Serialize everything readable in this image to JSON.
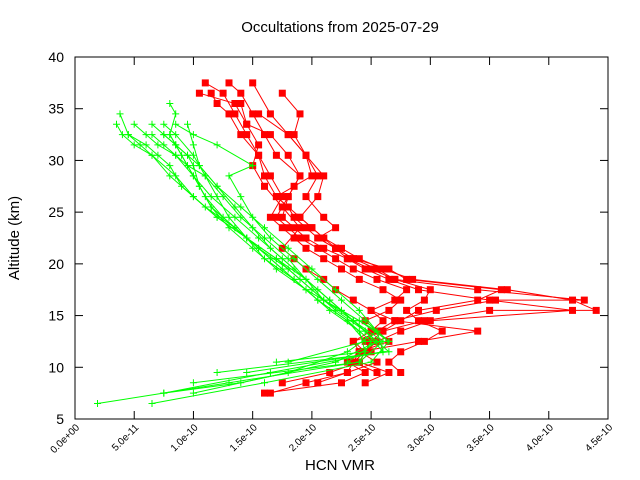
{
  "chart_data": {
    "type": "scatter",
    "title": "Occultations from 2025-07-29",
    "xlabel": "HCN VMR",
    "ylabel": "Altitude (km)",
    "xlim": [
      0,
      4.5e-10
    ],
    "ylim": [
      5,
      40
    ],
    "x_ticks": [
      0,
      5e-11,
      1e-10,
      1.5e-10,
      2e-10,
      2.5e-10,
      3e-10,
      3.5e-10,
      4e-10,
      4.5e-10
    ],
    "x_tick_labels": [
      "0.0e+00",
      "5.0e-11",
      "1.0e-10",
      "1.5e-10",
      "2.0e-10",
      "2.5e-10",
      "3.0e-10",
      "3.5e-10",
      "4.0e-10",
      "4.5e-10"
    ],
    "y_ticks": [
      5,
      10,
      15,
      20,
      25,
      30,
      35,
      40
    ],
    "y_tick_labels": [
      "5",
      "10",
      "15",
      "20",
      "25",
      "30",
      "35",
      "40"
    ],
    "grid": false,
    "legend": "none",
    "series": [
      {
        "color": "#ff0000",
        "marker": "square",
        "profiles": [
          {
            "x": [
              1.65e-10,
              1.95e-10,
              2.3e-10,
              2.35e-10,
              2.45e-10,
              2.5e-10,
              2.6e-10,
              2.75e-10,
              2.9e-10,
              3.4e-10,
              3.6e-10,
              2.8e-10,
              2.65e-10,
              2.35e-10,
              2.2e-10,
              2.05e-10,
              1.95e-10,
              1.85e-10,
              1.8e-10,
              1.7e-10,
              1.85e-10,
              2e-10,
              1.95e-10,
              1.8e-10,
              1.55e-10
            ],
            "y": [
              7.5,
              8.5,
              9.5,
              10.5,
              11.5,
              12.5,
              13.5,
              14.5,
              15.5,
              16.5,
              17.5,
              18.5,
              19.5,
              20.5,
              21.5,
              22.5,
              23.5,
              24.5,
              25.5,
              26.5,
              27.5,
              28.5,
              30.5,
              32.5,
              34.5
            ]
          },
          {
            "x": [
              1.75e-10,
              2.15e-10,
              2.4e-10,
              2.5e-10,
              2.45e-10,
              2.55e-10,
              2.7e-10,
              3.05e-10,
              3.55e-10,
              4.3e-10,
              3.4e-10,
              2.7e-10,
              2.5e-10,
              2.3e-10,
              2.1e-10,
              1.95e-10,
              1.85e-10,
              1.75e-10,
              1.8e-10,
              1.9e-10,
              1.7e-10,
              1.6e-10,
              1.5e-10,
              1.4e-10,
              1.3e-10
            ],
            "y": [
              8.5,
              9.5,
              10.5,
              11.5,
              12.5,
              13.5,
              14.5,
              15.5,
              16.5,
              16.5,
              17.5,
              18.5,
              19.5,
              20.5,
              21.5,
              22.5,
              23.5,
              24.5,
              26.5,
              28.5,
              30.5,
              32.5,
              34.5,
              36.5,
              37.5
            ]
          },
          {
            "x": [
              2.05e-10,
              2.3e-10,
              2.55e-10,
              2.4e-10,
              2.35e-10,
              2.6e-10,
              2.95e-10,
              3.5e-10,
              4.4e-10,
              4.2e-10,
              3.65e-10,
              2.85e-10,
              2.6e-10,
              2.4e-10,
              2.25e-10,
              2.1e-10,
              2e-10,
              1.9e-10,
              2.05e-10,
              2.1e-10,
              1.95e-10,
              1.85e-10,
              1.9e-10,
              1.75e-10
            ],
            "y": [
              8.5,
              9.5,
              10.5,
              11.5,
              12.5,
              13.5,
              14.5,
              15.5,
              15.5,
              16.5,
              17.5,
              18.5,
              19.5,
              20.5,
              21.5,
              22.5,
              23.5,
              24.5,
              26.5,
              28.5,
              30.5,
              32.5,
              34.5,
              36.5
            ]
          },
          {
            "x": [
              2.45e-10,
              2.65e-10,
              2.4e-10,
              2.45e-10,
              2.55e-10,
              2.75e-10,
              3e-10,
              4.2e-10,
              3.5e-10,
              2.9e-10,
              2.65e-10,
              2.45e-10,
              2.3e-10,
              2.2e-10,
              2.05e-10,
              2.2e-10,
              2.1e-10,
              1.95e-10,
              2.05e-10,
              1.95e-10,
              1.8e-10,
              1.65e-10,
              1.5e-10
            ],
            "y": [
              8.5,
              9.5,
              10.5,
              11.5,
              12.5,
              13.5,
              14.5,
              15.5,
              16.5,
              17.5,
              18.5,
              19.5,
              20.5,
              21.5,
              22.5,
              23.5,
              24.5,
              26.5,
              28.5,
              30.5,
              32.5,
              34.5,
              37.5
            ]
          },
          {
            "x": [
              2.75e-10,
              2.65e-10,
              2.75e-10,
              2.95e-10,
              3.1e-10,
              2.9e-10,
              2.8e-10,
              2.95e-10,
              3e-10,
              2.7e-10,
              2.55e-10,
              2.35e-10,
              2.2e-10,
              2.1e-10,
              2e-10,
              1.9e-10,
              1.8e-10,
              1.7e-10,
              1.6e-10,
              1.55e-10,
              1.45e-10,
              1.35e-10,
              1.25e-10,
              1.1e-10
            ],
            "y": [
              9.5,
              10.5,
              11.5,
              12.5,
              13.5,
              14.5,
              15.5,
              16.5,
              17.5,
              18.5,
              19.5,
              20.5,
              21.5,
              22.5,
              23.5,
              24.5,
              25.5,
              26.5,
              28.5,
              30.5,
              32.5,
              34.5,
              36.5,
              37.5
            ]
          },
          {
            "x": [
              2.55e-10,
              2.35e-10,
              2.4e-10,
              2.65e-10,
              2.55e-10,
              2.45e-10,
              2.65e-10,
              2.75e-10,
              2.6e-10,
              2.4e-10,
              2.25e-10,
              2.1e-10,
              1.95e-10,
              1.85e-10,
              1.75e-10,
              1.65e-10,
              1.75e-10,
              1.65e-10,
              1.55e-10,
              1.4e-10,
              1.3e-10,
              1.2e-10,
              1.15e-10
            ],
            "y": [
              9.5,
              10.5,
              11.5,
              12.5,
              13.5,
              14.5,
              15.5,
              16.5,
              17.5,
              18.5,
              19.5,
              20.5,
              21.5,
              22.5,
              23.5,
              24.5,
              26.5,
              28.5,
              30.5,
              32.5,
              34.5,
              35.5,
              36.5
            ]
          },
          {
            "x": [
              2.4e-10,
              2.45e-10,
              2.35e-10,
              2.5e-10,
              2.6e-10,
              2.5e-10,
              2.7e-10,
              2.8e-10,
              2.55e-10,
              2.35e-10,
              2.2e-10,
              2.05e-10,
              1.9e-10,
              1.8e-10,
              1.7e-10,
              1.8e-10,
              1.9e-10,
              1.8e-10,
              1.65e-10,
              1.45e-10,
              1.35e-10,
              1.05e-10
            ],
            "y": [
              10.5,
              11.5,
              12.5,
              13.5,
              14.5,
              15.5,
              16.5,
              17.5,
              18.5,
              19.5,
              20.5,
              21.5,
              22.5,
              23.5,
              24.5,
              26.5,
              28.5,
              30.5,
              32.5,
              33.5,
              35.5,
              36.5
            ]
          },
          {
            "x": [
              1.6e-10,
              2.25e-10,
              2.45e-10,
              2.3e-10,
              2.4e-10,
              2.9e-10,
              3.4e-10,
              2.7e-10,
              2.5e-10,
              2.35e-10,
              2.2e-10,
              2.1e-10,
              1.95e-10,
              1.85e-10,
              1.75e-10,
              1.9e-10,
              1.75e-10,
              1.6e-10,
              1.5e-10,
              1.55e-10,
              1.45e-10,
              1.4e-10
            ],
            "y": [
              7.5,
              8.5,
              9.5,
              10.5,
              11.5,
              12.5,
              13.5,
              14.5,
              15.5,
              16.5,
              17.5,
              18.5,
              19.5,
              20.5,
              21.5,
              23.5,
              25.5,
              27.5,
              29.5,
              31.5,
              33.5,
              35.5
            ]
          }
        ]
      },
      {
        "color": "#00ff00",
        "marker": "plus",
        "profiles": [
          {
            "x": [
              1.9e-11,
              1.3e-10,
              2.4e-10,
              2.5e-10,
              2.3e-10,
              2.05e-10,
              1.85e-10,
              1.6e-10,
              1.45e-10,
              1.2e-10,
              1e-10,
              8.5e-11,
              6.5e-11,
              5e-11,
              4e-11,
              3.5e-11
            ],
            "y": [
              6.5,
              8.5,
              10.5,
              12.5,
              14.5,
              16.5,
              18.5,
              20.5,
              22.5,
              24.5,
              26.5,
              28.5,
              30.5,
              31.5,
              32.5,
              33.5
            ]
          },
          {
            "x": [
              6.5e-11,
              1.6e-10,
              2.5e-10,
              2.65e-10,
              2.4e-10,
              2.1e-10,
              1.9e-10,
              1.7e-10,
              1.45e-10,
              1.2e-10,
              1e-10,
              8e-11,
              6.5e-11,
              5.5e-11,
              4.5e-11,
              3.8e-11
            ],
            "y": [
              6.5,
              8.5,
              10.5,
              12.5,
              14.5,
              16.5,
              18.5,
              20.5,
              22.5,
              24.5,
              26.5,
              28.5,
              30.5,
              31.5,
              32.5,
              34.5
            ]
          },
          {
            "x": [
              7.5e-11,
              1.4e-10,
              2.2e-10,
              2.55e-10,
              2.35e-10,
              2.15e-10,
              1.95e-10,
              1.75e-10,
              1.55e-10,
              1.35e-10,
              1.15e-10,
              1e-10,
              8.5e-11,
              7e-11,
              6e-11,
              5e-11
            ],
            "y": [
              7.5,
              8.5,
              10.5,
              12.5,
              14.5,
              16.5,
              18.5,
              20.5,
              22.5,
              24.5,
              26.5,
              28.5,
              30.5,
              31.5,
              32.5,
              33.5
            ]
          },
          {
            "x": [
              1e-10,
              1.8e-10,
              2.3e-10,
              2.55e-10,
              2.4e-10,
              2.2e-10,
              2e-10,
              1.8e-10,
              1.6e-10,
              1.4e-10,
              1.2e-10,
              1.05e-10,
              9.5e-11,
              8.5e-11,
              7.5e-11,
              6.5e-11
            ],
            "y": [
              7.5,
              9.5,
              11.5,
              13.5,
              15.5,
              17.5,
              19.5,
              21.5,
              23.5,
              25.5,
              27.5,
              29.5,
              30.5,
              31.5,
              32.5,
              33.5
            ]
          },
          {
            "x": [
              7.5e-11,
              1.65e-10,
              2.6e-10,
              2.55e-10,
              2.25e-10,
              1.95e-10,
              1.75e-10,
              1.55e-10,
              1.35e-10,
              1.1e-10,
              9e-11,
              8e-11,
              7e-11,
              6e-11,
              4.5e-11
            ],
            "y": [
              7.5,
              9.5,
              11.5,
              13.5,
              15.5,
              17.5,
              19.5,
              21.5,
              23.5,
              25.5,
              27.5,
              29.5,
              30.5,
              31.5,
              32.5
            ]
          },
          {
            "x": [
              1e-10,
              2.4e-10,
              2.6e-10,
              2.35e-10,
              2.1e-10,
              1.95e-10,
              1.8e-10,
              1.6e-10,
              1.4e-10,
              1.25e-10,
              1.1e-10,
              9.5e-11,
              8.5e-11,
              7.5e-11,
              6.5e-11
            ],
            "y": [
              8.5,
              10.5,
              12.5,
              14.5,
              16.5,
              18.5,
              20.5,
              22.5,
              24.5,
              26.5,
              28.5,
              29.5,
              30.5,
              31.5,
              32.5
            ]
          },
          {
            "x": [
              1.45e-10,
              2.6e-10,
              2.45e-10,
              2.2e-10,
              2e-10,
              1.8e-10,
              1.55e-10,
              1.35e-10,
              1.15e-10,
              1.05e-10,
              9.5e-11,
              8.5e-11,
              7.5e-11
            ],
            "y": [
              9.5,
              11.5,
              13.5,
              15.5,
              17.5,
              19.5,
              21.5,
              23.5,
              25.5,
              27.5,
              29.5,
              31.5,
              32.5
            ]
          },
          {
            "x": [
              1.8e-10,
              2.45e-10,
              2.3e-10,
              2.05e-10,
              1.85e-10,
              1.65e-10,
              1.45e-10,
              1.3e-10,
              1.2e-10,
              1.1e-10,
              1e-10,
              8.5e-11,
              7.5e-11
            ],
            "y": [
              10.5,
              12.5,
              14.5,
              16.5,
              18.5,
              20.5,
              22.5,
              24.5,
              26.5,
              28.5,
              30.5,
              32.5,
              33.5
            ]
          },
          {
            "x": [
              2.3e-10,
              2.55e-10,
              2.35e-10,
              2.15e-10,
              1.95e-10,
              1.7e-10,
              1.45e-10,
              1.25e-10,
              1.1e-10,
              1e-10,
              9e-11,
              8e-11
            ],
            "y": [
              10.5,
              12.5,
              14.5,
              16.5,
              18.5,
              20.5,
              22.5,
              24.5,
              26.5,
              28.5,
              30.5,
              32.5
            ]
          },
          {
            "x": [
              2.65e-10,
              2.45e-10,
              2.25e-10,
              2.05e-10,
              1.85e-10,
              1.65e-10,
              1.5e-10,
              1.4e-10,
              1.3e-10,
              1.5e-10,
              1.2e-10,
              1e-10,
              8.5e-11
            ],
            "y": [
              12.5,
              14.5,
              16.5,
              18.5,
              20.5,
              22.5,
              24.5,
              26.5,
              28.5,
              29.5,
              31.5,
              32.5,
              33.5
            ]
          },
          {
            "x": [
              1.2e-10,
              2.65e-10,
              2.45e-10,
              2.25e-10,
              2.05e-10,
              1.85e-10,
              1.65e-10,
              1.5e-10,
              1.35e-10,
              1.2e-10,
              1.05e-10,
              1e-10,
              9.5e-11
            ],
            "y": [
              9.5,
              11.5,
              13.5,
              15.5,
              17.5,
              19.5,
              21.5,
              23.5,
              25.5,
              27.5,
              29.5,
              31.5,
              33.5
            ]
          },
          {
            "x": [
              1.7e-10,
              2.45e-10,
              2.4e-10,
              2.15e-10,
              1.95e-10,
              1.7e-10,
              1.5e-10,
              1.3e-10,
              1.15e-10,
              1.05e-10,
              1e-10,
              9.5e-11,
              8.5e-11,
              8e-11,
              8.5e-11,
              8e-11
            ],
            "y": [
              10.5,
              11.5,
              13.5,
              15.5,
              17.5,
              19.5,
              21.5,
              23.5,
              25.5,
              27.5,
              29.5,
              30.5,
              31.5,
              32.5,
              34.5,
              35.5
            ]
          }
        ]
      }
    ]
  }
}
